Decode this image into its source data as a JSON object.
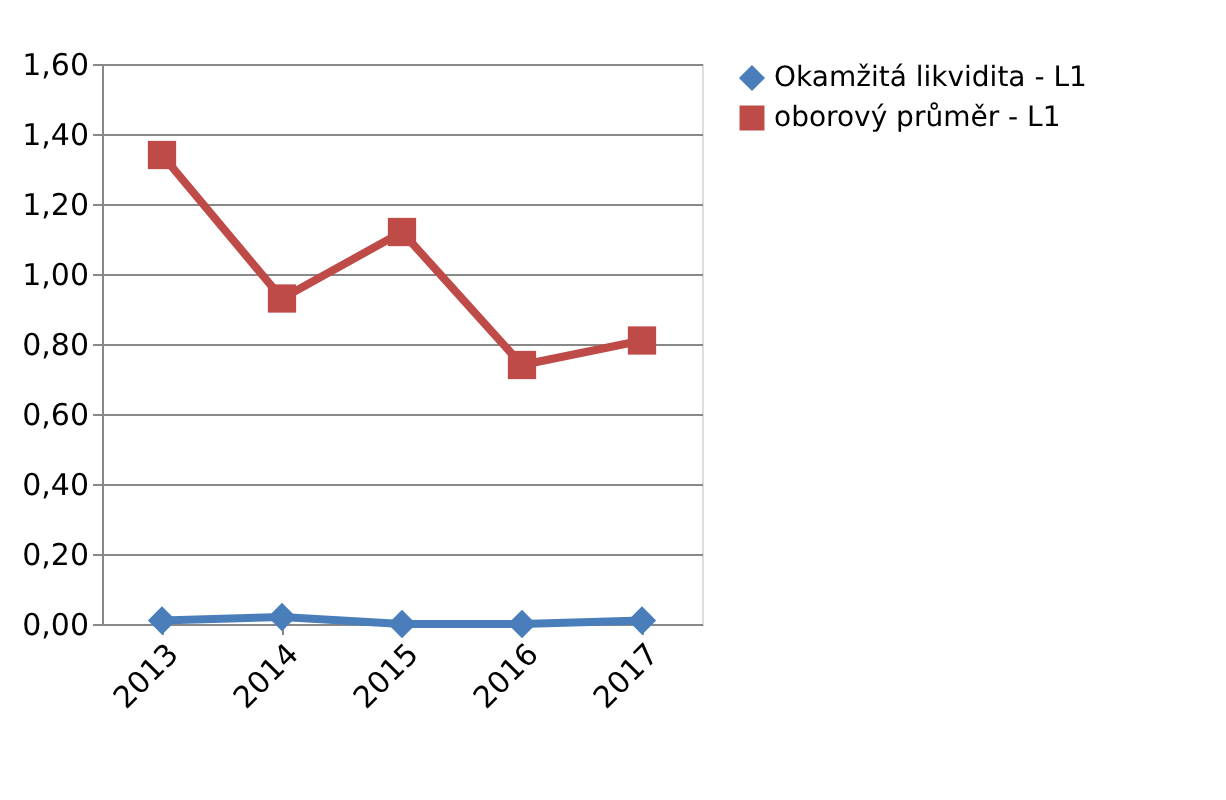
{
  "chart_data": {
    "type": "line",
    "categories": [
      "2013",
      "2014",
      "2015",
      "2016",
      "2017"
    ],
    "series": [
      {
        "name": "Okamžitá likvidita - L1",
        "color": "#4a7ebb",
        "marker": "diamond",
        "values": [
          0.01,
          0.02,
          0.0,
          0.0,
          0.01
        ]
      },
      {
        "name": "oborový průměr - L1",
        "color": "#be4b48",
        "marker": "square",
        "values": [
          1.34,
          0.93,
          1.12,
          0.74,
          0.81
        ]
      }
    ],
    "ylim": [
      0,
      1.6
    ],
    "yticks": [
      {
        "value": 0,
        "label": "0,00"
      },
      {
        "value": 0.2,
        "label": "0,20"
      },
      {
        "value": 0.4,
        "label": "0,40"
      },
      {
        "value": 0.6,
        "label": "0,60"
      },
      {
        "value": 0.8,
        "label": "0,80"
      },
      {
        "value": 1.0,
        "label": "1,00"
      },
      {
        "value": 1.2,
        "label": "1,20"
      },
      {
        "value": 1.4,
        "label": "1,40"
      },
      {
        "value": 1.6,
        "label": "1,60"
      }
    ],
    "grid": "y",
    "legend": "right"
  }
}
